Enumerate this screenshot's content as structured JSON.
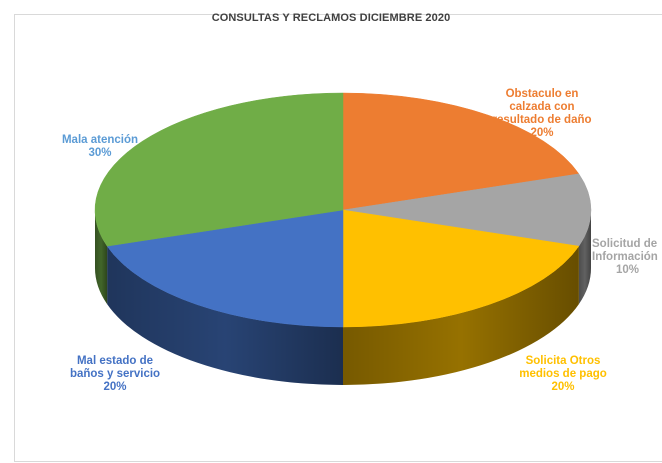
{
  "chart_data": {
    "type": "pie",
    "title": "CONSULTAS Y RECLAMOS DICIEMBRE 2020",
    "slices": [
      {
        "label_lines": [
          "Obstaculo en",
          "calzada con",
          "resultado de daño"
        ],
        "percent_label": "20%",
        "value": 20,
        "color": "#ED7D31"
      },
      {
        "label_lines": [
          "Solicitud de",
          "Información"
        ],
        "percent_label": "10%",
        "value": 10,
        "color": "#A5A5A5"
      },
      {
        "label_lines": [
          "Solicita Otros",
          "medios de pago"
        ],
        "percent_label": "20%",
        "value": 20,
        "color": "#FFC000"
      },
      {
        "label_lines": [
          "Mal estado de",
          "baños y servicio"
        ],
        "percent_label": "20%",
        "value": 20,
        "color": "#4472C4"
      },
      {
        "label_lines": [
          "Mala atención"
        ],
        "percent_label": "30%",
        "value": 30,
        "color": "#70AD47"
      }
    ]
  }
}
